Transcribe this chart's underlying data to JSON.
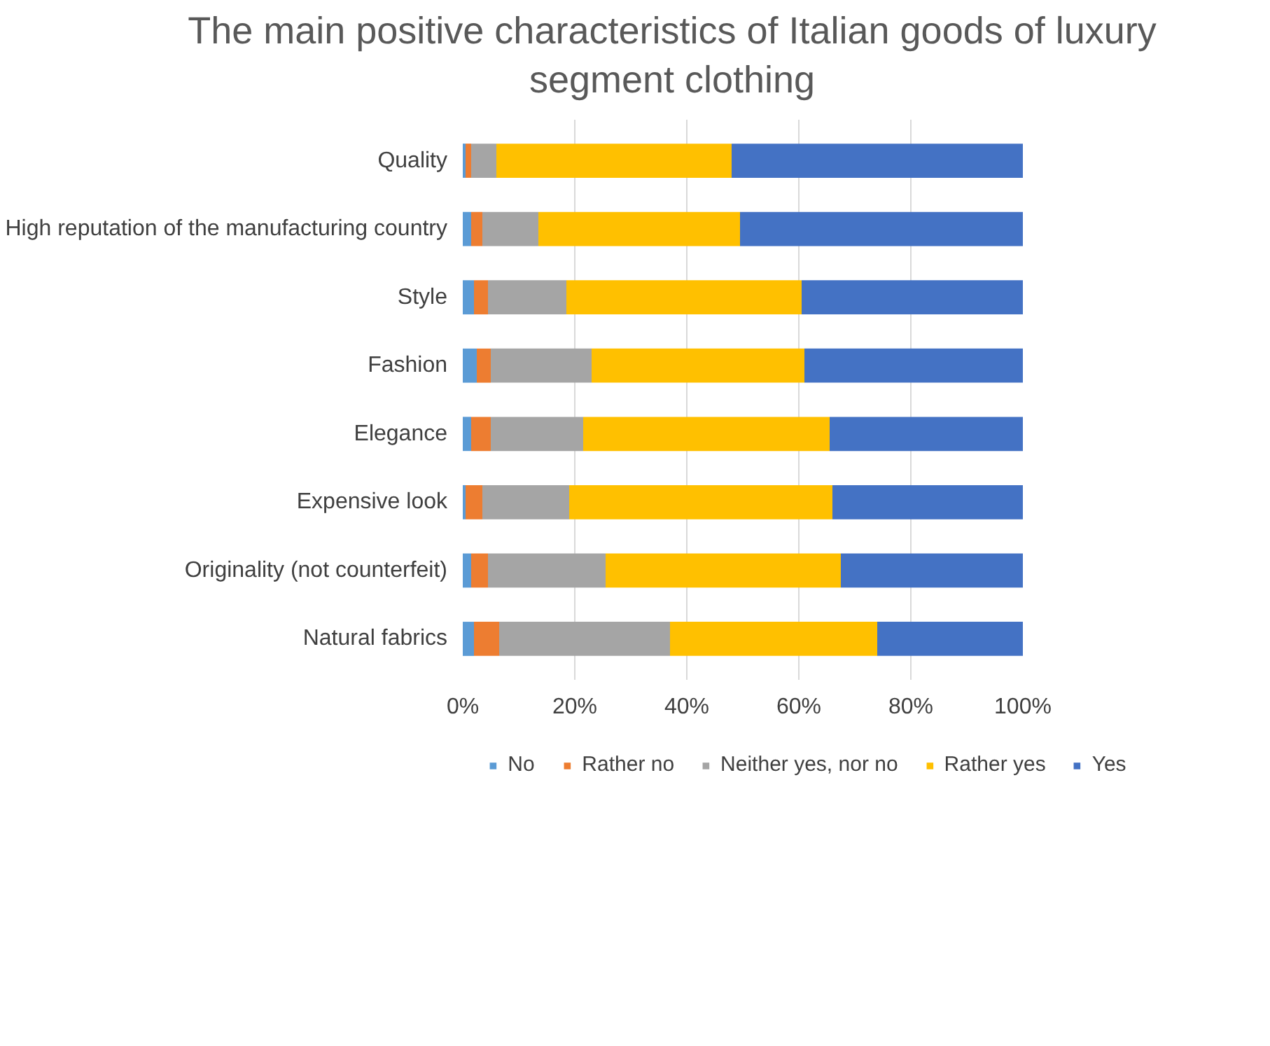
{
  "chart_data": {
    "type": "bar",
    "orientation": "horizontal",
    "stacked": true,
    "title": "The main positive characteristics of Italian goods of luxury segment clothing",
    "categories": [
      "Quality",
      "High reputation of the manufacturing country",
      "Style",
      "Fashion",
      "Elegance",
      "Expensive look",
      "Originality (not counterfeit)",
      "Natural fabrics"
    ],
    "series": [
      {
        "name": "No",
        "color": "#5b9bd5",
        "values": [
          0.5,
          1.5,
          2,
          2.5,
          1.5,
          0.5,
          1.5,
          2
        ]
      },
      {
        "name": "Rather no",
        "color": "#ed7d31",
        "values": [
          1,
          2,
          2.5,
          2.5,
          3.5,
          3,
          3,
          4.5
        ]
      },
      {
        "name": "Neither yes, nor no",
        "color": "#a5a5a5",
        "values": [
          4.5,
          10,
          14,
          18,
          16.5,
          15.5,
          21,
          30.5
        ]
      },
      {
        "name": "Rather yes",
        "color": "#ffc000",
        "values": [
          42,
          36,
          42,
          38,
          44,
          47,
          42,
          37
        ]
      },
      {
        "name": "Yes",
        "color": "#4472c4",
        "values": [
          52,
          50.5,
          39.5,
          39,
          34.5,
          34,
          32.5,
          26
        ]
      }
    ],
    "xlim": [
      0,
      100
    ],
    "xticks": [
      {
        "value": 0,
        "label": "0%"
      },
      {
        "value": 20,
        "label": "20%"
      },
      {
        "value": 40,
        "label": "40%"
      },
      {
        "value": 60,
        "label": "60%"
      },
      {
        "value": 80,
        "label": "80%"
      },
      {
        "value": 100,
        "label": "100%"
      }
    ],
    "grid": "x",
    "legend": "bottom"
  }
}
